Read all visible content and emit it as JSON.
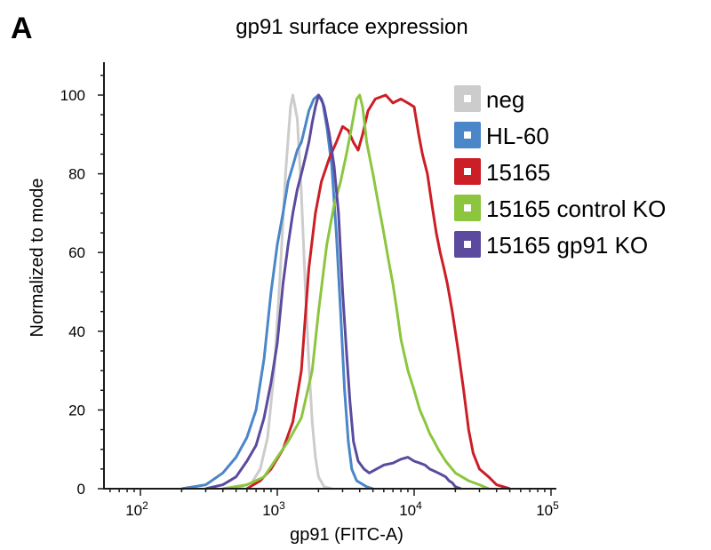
{
  "panel_label": "A",
  "chart_data": {
    "type": "line",
    "title": "gp91 surface expression",
    "xlabel": "gp91 (FITC-A)",
    "ylabel": "Normalized to mode",
    "x_scale": "log",
    "xlim": [
      60,
      100000
    ],
    "ylim": [
      0,
      107
    ],
    "x_ticks": [
      {
        "value": 100,
        "base": "10",
        "exp": "2"
      },
      {
        "value": 1000,
        "base": "10",
        "exp": "3"
      },
      {
        "value": 10000,
        "base": "10",
        "exp": "4"
      },
      {
        "value": 100000,
        "base": "10",
        "exp": "5"
      }
    ],
    "y_ticks": [
      0,
      20,
      40,
      60,
      80,
      100
    ],
    "legend_position": "top-right",
    "grid": false,
    "series": [
      {
        "name": "neg",
        "color": "#cccccc",
        "points": [
          [
            500,
            0
          ],
          [
            650,
            1.5
          ],
          [
            750,
            5
          ],
          [
            850,
            13
          ],
          [
            950,
            30
          ],
          [
            1050,
            55
          ],
          [
            1150,
            80
          ],
          [
            1250,
            97
          ],
          [
            1300,
            100
          ],
          [
            1400,
            94
          ],
          [
            1500,
            75
          ],
          [
            1600,
            52
          ],
          [
            1700,
            32
          ],
          [
            1800,
            17
          ],
          [
            1900,
            8
          ],
          [
            2000,
            3
          ],
          [
            2200,
            0.5
          ],
          [
            2500,
            0
          ]
        ]
      },
      {
        "name": "HL-60",
        "color": "#4a86c8",
        "points": [
          [
            200,
            0
          ],
          [
            300,
            1
          ],
          [
            400,
            4
          ],
          [
            500,
            8
          ],
          [
            600,
            13
          ],
          [
            700,
            20
          ],
          [
            800,
            33
          ],
          [
            900,
            50
          ],
          [
            1000,
            62
          ],
          [
            1100,
            70
          ],
          [
            1200,
            78
          ],
          [
            1300,
            82
          ],
          [
            1400,
            86
          ],
          [
            1500,
            88
          ],
          [
            1600,
            92
          ],
          [
            1700,
            96
          ],
          [
            1850,
            99
          ],
          [
            2000,
            100
          ],
          [
            2150,
            98
          ],
          [
            2300,
            92
          ],
          [
            2500,
            82
          ],
          [
            2700,
            65
          ],
          [
            2900,
            45
          ],
          [
            3100,
            25
          ],
          [
            3300,
            12
          ],
          [
            3500,
            5
          ],
          [
            3800,
            2
          ],
          [
            4500,
            0.5
          ],
          [
            5000,
            0
          ]
        ]
      },
      {
        "name": "15165",
        "color": "#cc1e26",
        "points": [
          [
            600,
            0
          ],
          [
            750,
            2
          ],
          [
            900,
            5
          ],
          [
            1100,
            10
          ],
          [
            1300,
            17
          ],
          [
            1500,
            30
          ],
          [
            1700,
            56
          ],
          [
            1900,
            70
          ],
          [
            2100,
            78
          ],
          [
            2400,
            84
          ],
          [
            2700,
            88
          ],
          [
            3000,
            92
          ],
          [
            3300,
            91
          ],
          [
            3600,
            88
          ],
          [
            3900,
            86
          ],
          [
            4200,
            90
          ],
          [
            4600,
            96
          ],
          [
            5200,
            99
          ],
          [
            6200,
            100
          ],
          [
            7000,
            98
          ],
          [
            8000,
            99
          ],
          [
            9000,
            98
          ],
          [
            10000,
            97
          ],
          [
            10800,
            90
          ],
          [
            11500,
            85
          ],
          [
            12500,
            80
          ],
          [
            13500,
            72
          ],
          [
            14500,
            65
          ],
          [
            15500,
            60
          ],
          [
            16500,
            56
          ],
          [
            17500,
            52
          ],
          [
            19000,
            45
          ],
          [
            21000,
            35
          ],
          [
            23000,
            25
          ],
          [
            25000,
            15
          ],
          [
            27000,
            9
          ],
          [
            30000,
            5
          ],
          [
            35000,
            3
          ],
          [
            40000,
            1
          ],
          [
            50000,
            0
          ]
        ]
      },
      {
        "name": "15165 control KO",
        "color": "#8cc63f",
        "points": [
          [
            400,
            0
          ],
          [
            600,
            1
          ],
          [
            800,
            3
          ],
          [
            1000,
            8
          ],
          [
            1200,
            12
          ],
          [
            1500,
            18
          ],
          [
            1800,
            30
          ],
          [
            2000,
            45
          ],
          [
            2300,
            62
          ],
          [
            2600,
            72
          ],
          [
            2900,
            78
          ],
          [
            3200,
            85
          ],
          [
            3500,
            92
          ],
          [
            3800,
            99
          ],
          [
            4000,
            100
          ],
          [
            4200,
            97
          ],
          [
            4500,
            88
          ],
          [
            5000,
            80
          ],
          [
            5500,
            72
          ],
          [
            6000,
            65
          ],
          [
            6500,
            58
          ],
          [
            7000,
            52
          ],
          [
            7500,
            45
          ],
          [
            8000,
            38
          ],
          [
            9000,
            30
          ],
          [
            10000,
            25
          ],
          [
            11000,
            20
          ],
          [
            12000,
            17
          ],
          [
            13000,
            14
          ],
          [
            14000,
            12
          ],
          [
            15000,
            10
          ],
          [
            17000,
            7
          ],
          [
            20000,
            4
          ],
          [
            25000,
            2
          ],
          [
            30000,
            1
          ],
          [
            35000,
            0
          ]
        ]
      },
      {
        "name": "15165 gp91 KO",
        "color": "#5b4a9e",
        "points": [
          [
            300,
            0
          ],
          [
            400,
            1
          ],
          [
            500,
            3
          ],
          [
            600,
            7
          ],
          [
            700,
            11
          ],
          [
            800,
            18
          ],
          [
            900,
            27
          ],
          [
            1000,
            37
          ],
          [
            1100,
            52
          ],
          [
            1200,
            62
          ],
          [
            1300,
            70
          ],
          [
            1400,
            76
          ],
          [
            1500,
            80
          ],
          [
            1600,
            84
          ],
          [
            1700,
            88
          ],
          [
            1800,
            93
          ],
          [
            1900,
            97
          ],
          [
            2000,
            100
          ],
          [
            2100,
            99
          ],
          [
            2200,
            97
          ],
          [
            2400,
            90
          ],
          [
            2600,
            82
          ],
          [
            2800,
            70
          ],
          [
            3000,
            50
          ],
          [
            3200,
            35
          ],
          [
            3400,
            22
          ],
          [
            3600,
            12
          ],
          [
            3900,
            7
          ],
          [
            4300,
            5
          ],
          [
            4700,
            4
          ],
          [
            5300,
            5
          ],
          [
            6000,
            6
          ],
          [
            7000,
            6.5
          ],
          [
            8000,
            7.5
          ],
          [
            9000,
            8
          ],
          [
            10000,
            7
          ],
          [
            11000,
            6.5
          ],
          [
            12000,
            6
          ],
          [
            13000,
            5
          ],
          [
            14000,
            4.5
          ],
          [
            15000,
            4
          ],
          [
            16000,
            3.5
          ],
          [
            17000,
            3
          ],
          [
            18000,
            2
          ],
          [
            19000,
            1.5
          ],
          [
            20000,
            0.5
          ],
          [
            22000,
            0
          ]
        ]
      }
    ]
  }
}
